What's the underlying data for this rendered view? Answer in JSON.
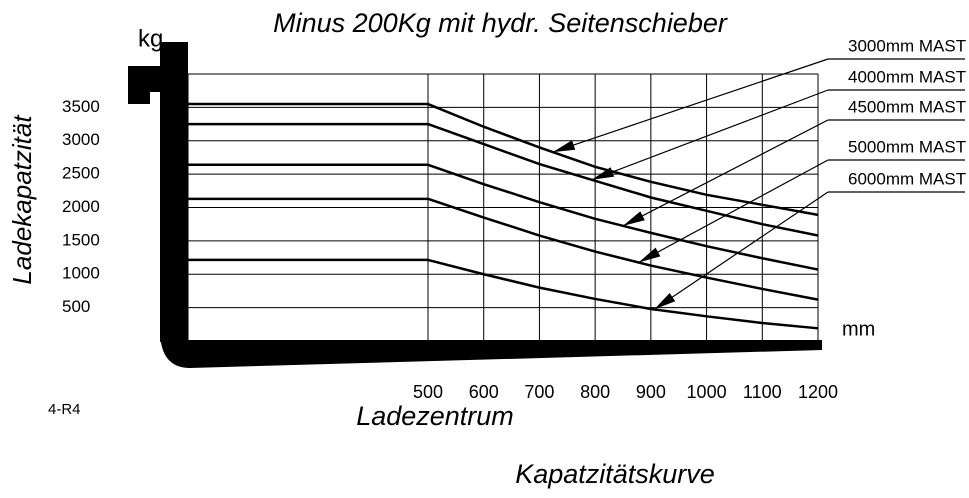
{
  "chart_data": {
    "type": "line",
    "title": "Minus 200Kg mit hydr. Seitenschieber",
    "y_unit": "kg",
    "x_unit": "mm",
    "y_label": "Ladekapatzität",
    "x_label": "Ladezentrum",
    "note": "4-R4",
    "caption": "Kapatzitätskurve",
    "x": [
      500,
      600,
      700,
      800,
      900,
      1000,
      1100,
      1200
    ],
    "xlim": [
      500,
      1200
    ],
    "xticks": [
      500,
      600,
      700,
      800,
      900,
      1000,
      1100,
      1200
    ],
    "ylim": [
      0,
      4000
    ],
    "yticks": [
      500,
      1000,
      1500,
      2000,
      2500,
      3000,
      3500
    ],
    "grid": true,
    "series": [
      {
        "name": "3000mm MAST",
        "color": "#000000",
        "values": [
          3550,
          3210,
          2900,
          2610,
          2385,
          2190,
          2040,
          1890
        ]
      },
      {
        "name": "4000mm MAST",
        "color": "#000000",
        "values": [
          3250,
          2950,
          2650,
          2400,
          2150,
          1950,
          1750,
          1580
        ]
      },
      {
        "name": "4500mm MAST",
        "color": "#000000",
        "values": [
          2640,
          2350,
          2080,
          1830,
          1620,
          1420,
          1240,
          1070
        ]
      },
      {
        "name": "5000mm MAST",
        "color": "#000000",
        "values": [
          2130,
          1850,
          1580,
          1340,
          1130,
          950,
          780,
          620
        ]
      },
      {
        "name": "6000mm MAST",
        "color": "#000000",
        "values": [
          1215,
          1000,
          800,
          630,
          480,
          370,
          270,
          190
        ]
      }
    ]
  }
}
